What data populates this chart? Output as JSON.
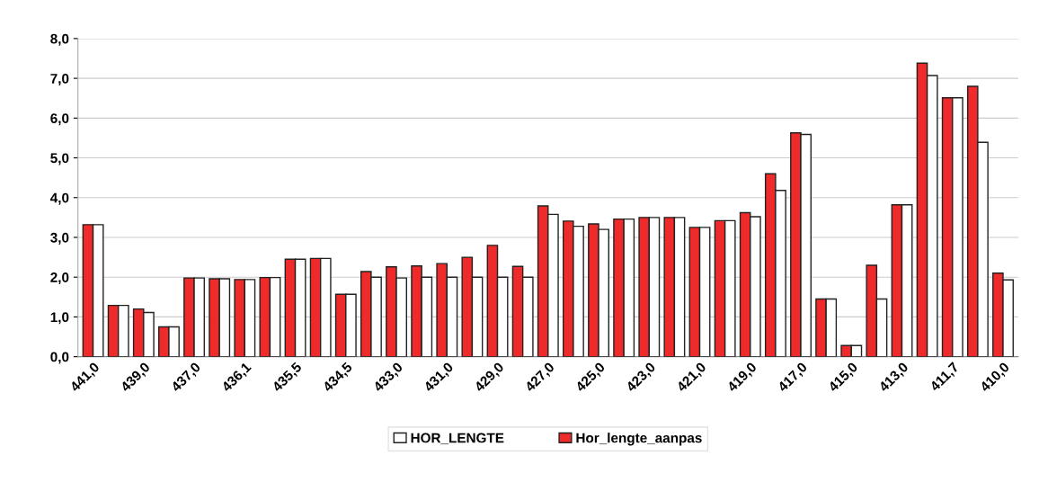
{
  "chart_data": {
    "type": "bar",
    "categories": [
      "441,0",
      null,
      "439,0",
      null,
      "437,0",
      null,
      "436,1",
      null,
      "435,5",
      null,
      "434,5",
      null,
      "433,0",
      null,
      "431,0",
      null,
      "429,0",
      null,
      "427,0",
      null,
      "425,0",
      null,
      "423,0",
      null,
      "421,0",
      null,
      "419,0",
      null,
      "417,0",
      null,
      "415,0",
      null,
      "413,0",
      null,
      "411,7",
      null,
      "410,0"
    ],
    "series": [
      {
        "name": "Hor_lengte_aanpas",
        "color": "#ee2a2a",
        "values": [
          3.32,
          1.29,
          1.2,
          0.75,
          1.98,
          1.96,
          1.94,
          1.99,
          2.45,
          2.47,
          1.57,
          2.14,
          2.26,
          2.28,
          2.34,
          2.5,
          2.8,
          2.27,
          3.79,
          3.41,
          3.34,
          3.46,
          3.5,
          3.5,
          3.25,
          3.42,
          3.62,
          4.6,
          5.63,
          1.45,
          0.28,
          2.3,
          3.82,
          7.38,
          6.51,
          6.8,
          2.1
        ]
      },
      {
        "name": "HOR_LENGTE",
        "color": "#ffffff",
        "values": [
          3.32,
          1.29,
          1.11,
          0.75,
          1.98,
          1.96,
          1.94,
          1.99,
          2.45,
          2.47,
          1.57,
          2.0,
          1.98,
          2.0,
          2.0,
          2.0,
          2.0,
          2.0,
          3.58,
          3.28,
          3.2,
          3.46,
          3.5,
          3.5,
          3.25,
          3.42,
          3.52,
          4.18,
          5.59,
          1.45,
          0.28,
          1.45,
          3.82,
          7.07,
          6.51,
          5.39,
          1.93
        ]
      }
    ],
    "ylim": [
      0,
      8
    ],
    "yticks": [
      {
        "value": 0,
        "label": "0,0"
      },
      {
        "value": 1,
        "label": "1,0"
      },
      {
        "value": 2,
        "label": "2,0"
      },
      {
        "value": 3,
        "label": "3,0"
      },
      {
        "value": 4,
        "label": "4,0"
      },
      {
        "value": 5,
        "label": "5,0"
      },
      {
        "value": 6,
        "label": "6,0"
      },
      {
        "value": 7,
        "label": "7,0"
      },
      {
        "value": 8,
        "label": "8,0"
      }
    ],
    "grid": "y",
    "legend": "bottom"
  }
}
